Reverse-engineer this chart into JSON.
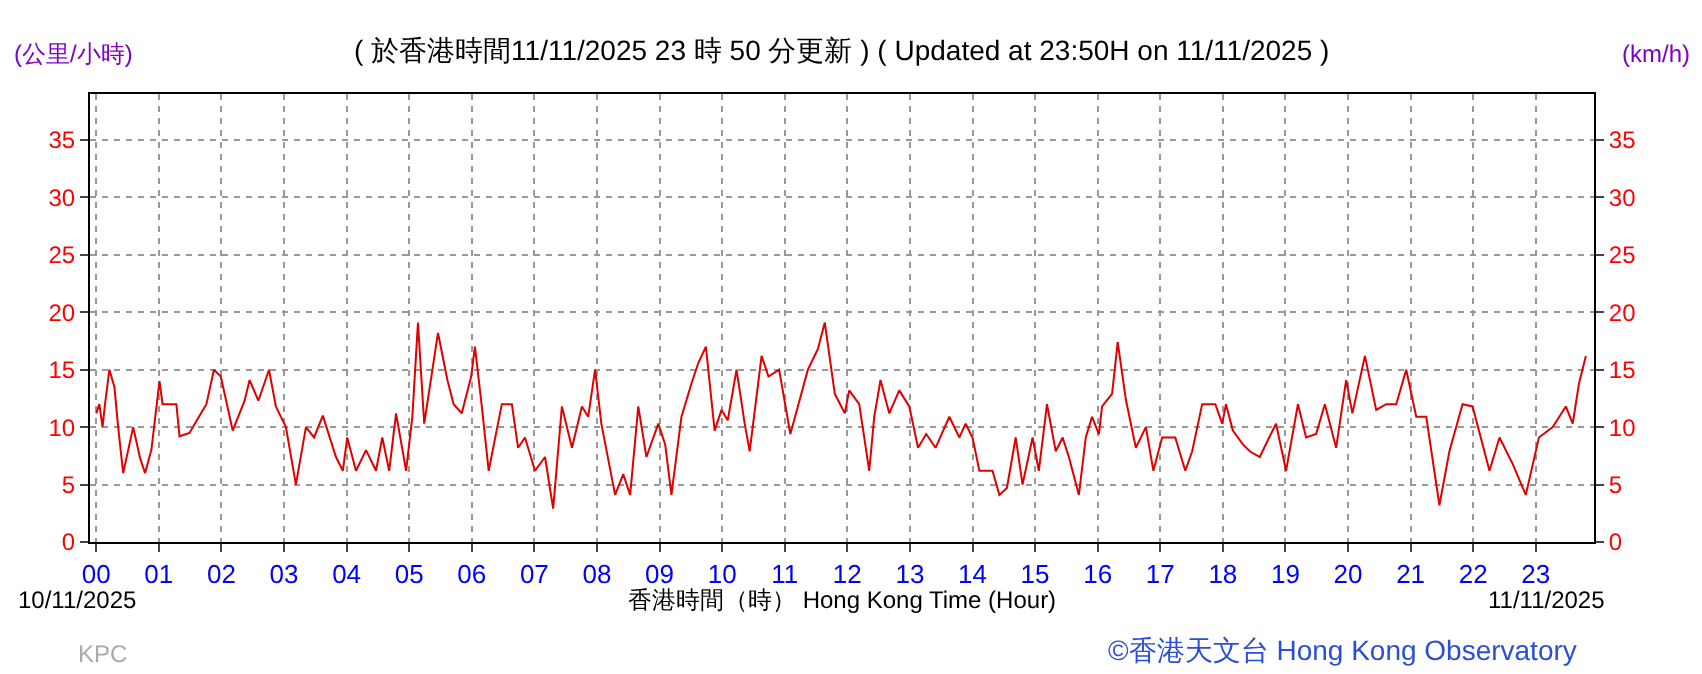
{
  "chart_data": {
    "type": "line",
    "title": "( 於香港時間11/11/2025 23 時 50 分更新 ) ( Updated at 23:50H on 11/11/2025 )",
    "xlabel": "香港時間（時） Hong Kong Time (Hour)",
    "ylabel": "(公里/小時)",
    "y2label": "(km/h)",
    "annotations": [
      "10/11/2025",
      "11/11/2025",
      "KPC",
      "©香港天文台 Hong Kong Observatory"
    ],
    "x": [
      0,
      0.05,
      0.1,
      0.14,
      0.21,
      0.29,
      0.35,
      0.43,
      0.59,
      0.7,
      0.78,
      0.88,
      1.01,
      1.06,
      1.28,
      1.33,
      1.49,
      1.65,
      1.76,
      1.88,
      1.99,
      2.18,
      2.37,
      2.45,
      2.59,
      2.76,
      2.87,
      3.03,
      3.19,
      3.35,
      3.48,
      3.62,
      3.83,
      3.94,
      4.01,
      4.15,
      4.31,
      4.47,
      4.57,
      4.68,
      4.79,
      4.95,
      5.05,
      5.14,
      5.24,
      5.46,
      5.61,
      5.71,
      5.84,
      5.99,
      6.05,
      6.16,
      6.27,
      6.48,
      6.64,
      6.74,
      6.85,
      7.01,
      7.17,
      7.3,
      7.44,
      7.6,
      7.76,
      7.86,
      7.97,
      8.07,
      8.29,
      8.42,
      8.53,
      8.66,
      8.79,
      8.98,
      9.09,
      9.19,
      9.35,
      9.51,
      9.62,
      9.74,
      9.88,
      9.99,
      10.09,
      10.23,
      10.36,
      10.44,
      10.63,
      10.74,
      10.91,
      11.09,
      11.21,
      11.37,
      11.53,
      11.64,
      11.8,
      11.96,
      12.03,
      12.19,
      12.35,
      12.43,
      12.53,
      12.67,
      12.83,
      12.99,
      13.13,
      13.26,
      13.41,
      13.63,
      13.79,
      13.89,
      14.0,
      14.11,
      14.32,
      14.43,
      14.55,
      14.69,
      14.8,
      14.96,
      15.06,
      15.19,
      15.33,
      15.44,
      15.54,
      15.7,
      15.81,
      15.91,
      16.02,
      16.07,
      16.23,
      16.32,
      16.45,
      16.61,
      16.77,
      16.89,
      17.03,
      17.24,
      17.4,
      17.51,
      17.67,
      17.88,
      17.99,
      18.05,
      18.16,
      18.32,
      18.43,
      18.59,
      18.74,
      18.85,
      19.01,
      19.2,
      19.33,
      19.49,
      19.63,
      19.81,
      19.97,
      20.07,
      20.27,
      20.45,
      20.61,
      20.77,
      20.93,
      21.09,
      21.25,
      21.46,
      21.62,
      21.83,
      21.99,
      22.26,
      22.42,
      22.63,
      22.84,
      23.05,
      23.27,
      23.48,
      23.59,
      23.69,
      23.8
    ],
    "values": [
      11.2,
      12,
      10,
      12,
      15,
      13.5,
      10,
      6,
      10,
      7.3,
      6,
      8,
      14,
      12,
      12,
      9.2,
      9.5,
      11,
      12,
      15,
      14.4,
      9.7,
      12.3,
      14.1,
      12.3,
      15,
      11.8,
      10,
      5,
      10,
      9.1,
      11,
      7.4,
      6.2,
      9.1,
      6.2,
      8,
      6.2,
      9.1,
      6.2,
      11.2,
      6.2,
      10.9,
      19.1,
      10.3,
      18.2,
      14.1,
      12,
      11.2,
      14.4,
      17,
      11.8,
      6.2,
      12,
      12,
      8.2,
      9.1,
      6.2,
      7.4,
      2.9,
      11.8,
      8.2,
      11.8,
      10.9,
      15,
      10.3,
      4.1,
      5.9,
      4.1,
      11.8,
      7.4,
      10.3,
      8.5,
      4.1,
      10.9,
      13.8,
      15.6,
      17,
      9.7,
      11.5,
      10.6,
      15,
      10.3,
      7.9,
      16.2,
      14.4,
      15,
      9.4,
      11.8,
      15,
      16.8,
      19.1,
      12.9,
      11.2,
      13.2,
      12,
      6.2,
      10.9,
      14.1,
      11.2,
      13.2,
      11.8,
      8.2,
      9.4,
      8.2,
      10.9,
      9.1,
      10.3,
      9.1,
      6.2,
      6.2,
      4.1,
      4.7,
      9.1,
      5,
      9.1,
      6.2,
      12,
      7.9,
      9.1,
      7.4,
      4.1,
      9.1,
      10.9,
      9.4,
      11.8,
      12.9,
      17.4,
      12.4,
      8.2,
      10,
      6.2,
      9.1,
      9.1,
      6.2,
      7.9,
      12,
      12,
      10.3,
      12,
      9.7,
      8.5,
      7.9,
      7.4,
      9.1,
      10.3,
      6.2,
      12,
      9.1,
      9.4,
      12,
      8.2,
      14.1,
      11.2,
      16.2,
      11.5,
      12,
      12,
      15,
      10.9,
      10.9,
      3.2,
      7.9,
      12,
      11.8,
      6.2,
      9.1,
      6.8,
      4.1,
      9.1,
      10,
      11.8,
      10.3,
      13.8,
      16.2
    ],
    "color": "#e00000",
    "xlim": [
      -0.1,
      23.93
    ],
    "xticks": [
      {
        "value": 0,
        "label": "00"
      },
      {
        "value": 1,
        "label": "01"
      },
      {
        "value": 2,
        "label": "02"
      },
      {
        "value": 3,
        "label": "03"
      },
      {
        "value": 4,
        "label": "04"
      },
      {
        "value": 5,
        "label": "05"
      },
      {
        "value": 6,
        "label": "06"
      },
      {
        "value": 7,
        "label": "07"
      },
      {
        "value": 8,
        "label": "08"
      },
      {
        "value": 9,
        "label": "09"
      },
      10,
      11,
      12,
      13,
      14,
      15,
      16,
      17,
      18,
      19,
      20,
      21,
      22,
      23
    ],
    "ylim": [
      0,
      39
    ],
    "yticks": [
      0,
      5,
      10,
      15,
      20,
      25,
      30,
      35
    ],
    "y2lim": [
      0,
      39
    ],
    "y2ticks": [
      0,
      5,
      10,
      15,
      20,
      25,
      30,
      35
    ],
    "grid": true,
    "line_style": "solid"
  }
}
